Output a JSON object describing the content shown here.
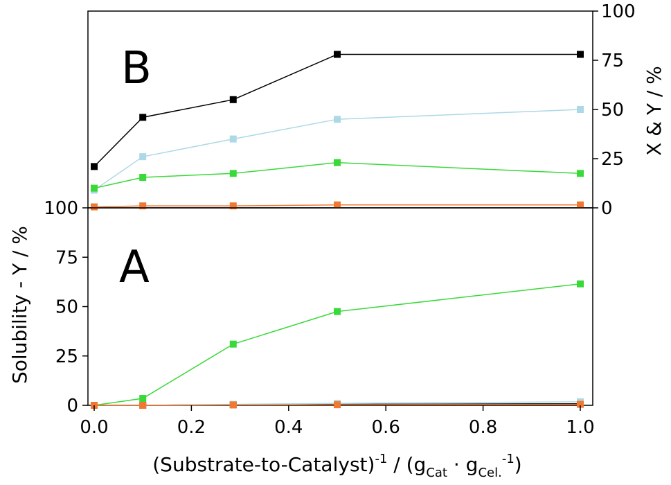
{
  "chart_data": {
    "type": "line",
    "x_axis": {
      "label_main": "(Substrate-to-Catalyst)",
      "label_sup": "-1",
      "label_unit_open": " / (g",
      "label_unit_sub1": "Cat",
      "label_unit_mid": " · g",
      "label_unit_sub2": "Cel.",
      "label_unit_sup2": "-1",
      "label_unit_close": ")",
      "range": [
        0,
        1
      ],
      "ticks": [
        "0.0",
        "0.2",
        "0.4",
        "0.6",
        "0.8",
        "1.0"
      ],
      "tick_values": [
        0,
        0.2,
        0.4,
        0.6,
        0.8,
        1.0
      ]
    },
    "panels": [
      {
        "letter": "B",
        "ylabel": "X & Y / %",
        "ylabel_side": "right",
        "ylim": [
          0,
          100
        ],
        "ticks": [
          "0",
          "25",
          "50",
          "75",
          "100"
        ],
        "tick_values": [
          0,
          25,
          50,
          75,
          100
        ],
        "series": [
          {
            "color": "#000000",
            "x": [
              0,
              0.1,
              0.286,
              0.5,
              1.0
            ],
            "y": [
              21,
              46,
              55,
              78,
              78
            ]
          },
          {
            "color": "#add8e6",
            "x": [
              0,
              0.1,
              0.286,
              0.5,
              1.0
            ],
            "y": [
              9,
              26,
              35,
              45,
              50
            ]
          },
          {
            "color": "#39d939",
            "x": [
              0,
              0.1,
              0.286,
              0.5,
              1.0
            ],
            "y": [
              10,
              15.5,
              17.5,
              23,
              17.5
            ]
          },
          {
            "color": "#f07830",
            "x": [
              0,
              0.1,
              0.286,
              0.5,
              1.0
            ],
            "y": [
              0.5,
              1.0,
              1.0,
              1.5,
              1.5
            ]
          }
        ]
      },
      {
        "letter": "A",
        "ylabel": "Solubility - Y / %",
        "ylabel_side": "left",
        "ylim": [
          0,
          100
        ],
        "ticks": [
          "0",
          "25",
          "50",
          "75",
          "100"
        ],
        "tick_values": [
          0,
          25,
          50,
          75,
          100
        ],
        "series": [
          {
            "color": "#000000",
            "x": [
              0,
              0.1,
              0.286,
              0.5,
              1.0
            ],
            "y": [
              0,
              0,
              0.3,
              0.5,
              0.8
            ]
          },
          {
            "color": "#add8e6",
            "x": [
              0,
              0.1,
              0.286,
              0.5,
              1.0
            ],
            "y": [
              0,
              0,
              0.5,
              1.0,
              1.8
            ]
          },
          {
            "color": "#39d939",
            "x": [
              0,
              0.1,
              0.286,
              0.5,
              1.0
            ],
            "y": [
              0,
              3.5,
              31,
              47.5,
              61.5
            ]
          },
          {
            "color": "#f07830",
            "x": [
              0,
              0.1,
              0.286,
              0.5,
              1.0
            ],
            "y": [
              0,
              0,
              0.2,
              0.3,
              0.5
            ]
          }
        ]
      }
    ],
    "grid": false
  }
}
